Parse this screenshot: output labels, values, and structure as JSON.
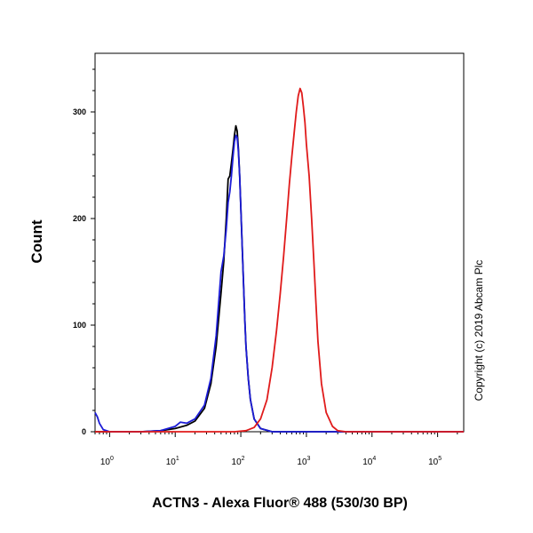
{
  "chart_data": {
    "type": "line",
    "xlabel": "ACTN3 - Alexa Fluor® 488 (530/30 BP)",
    "ylabel": "Count",
    "x_scale": "log",
    "xlim": [
      0.6,
      250000
    ],
    "ylim": [
      0,
      355
    ],
    "x_ticks": [
      {
        "value": 1,
        "base": "10",
        "exp": "0"
      },
      {
        "value": 10,
        "base": "10",
        "exp": "1"
      },
      {
        "value": 100,
        "base": "10",
        "exp": "2"
      },
      {
        "value": 1000,
        "base": "10",
        "exp": "3"
      },
      {
        "value": 10000,
        "base": "10",
        "exp": "4"
      },
      {
        "value": 100000,
        "base": "10",
        "exp": "5"
      }
    ],
    "y_ticks": [
      0,
      100,
      200,
      300
    ],
    "grid": false,
    "annotation": "Copyright (c) 2019 Abcam Plc",
    "series": [
      {
        "color": "#000000",
        "x": [
          0.6,
          1,
          3,
          6,
          10,
          15,
          20,
          28,
          35,
          42,
          50,
          55,
          60,
          64,
          68,
          72,
          76,
          80,
          84,
          88,
          92,
          96,
          100,
          105,
          110,
          115,
          120,
          130,
          140,
          160,
          200,
          300,
          1000,
          10000,
          100000,
          250000
        ],
        "values": [
          0,
          0,
          0,
          1,
          3,
          6,
          10,
          22,
          45,
          80,
          130,
          160,
          200,
          237,
          240,
          252,
          265,
          278,
          287,
          282,
          265,
          240,
          210,
          175,
          140,
          105,
          80,
          50,
          30,
          12,
          3,
          0,
          0,
          0,
          0,
          0
        ]
      },
      {
        "color": "#1c1cd6",
        "x": [
          0.6,
          0.65,
          0.7,
          0.8,
          1,
          3,
          6,
          10,
          12,
          15,
          20,
          28,
          35,
          42,
          50,
          55,
          60,
          64,
          68,
          72,
          76,
          80,
          84,
          88,
          92,
          96,
          100,
          105,
          110,
          115,
          120,
          130,
          140,
          160,
          200,
          300,
          1000,
          10000,
          100000,
          250000
        ],
        "values": [
          18,
          14,
          8,
          2,
          0,
          0,
          1,
          5,
          9,
          8,
          12,
          25,
          50,
          90,
          150,
          165,
          190,
          215,
          225,
          240,
          258,
          272,
          278,
          276,
          262,
          240,
          210,
          175,
          140,
          105,
          80,
          50,
          30,
          12,
          3,
          0,
          0,
          0,
          0,
          0
        ]
      },
      {
        "color": "#e01b1b",
        "x": [
          0.6,
          50,
          80,
          120,
          160,
          200,
          250,
          300,
          350,
          400,
          450,
          500,
          550,
          600,
          650,
          700,
          750,
          800,
          850,
          900,
          950,
          1000,
          1100,
          1200,
          1300,
          1400,
          1500,
          1700,
          2000,
          2500,
          3000,
          4000,
          10000,
          100000,
          250000
        ],
        "values": [
          0,
          0,
          0,
          1,
          4,
          12,
          30,
          60,
          95,
          130,
          165,
          200,
          232,
          258,
          280,
          300,
          315,
          322,
          318,
          305,
          290,
          270,
          240,
          200,
          160,
          120,
          85,
          45,
          18,
          5,
          1,
          0,
          0,
          0,
          0
        ]
      }
    ]
  }
}
